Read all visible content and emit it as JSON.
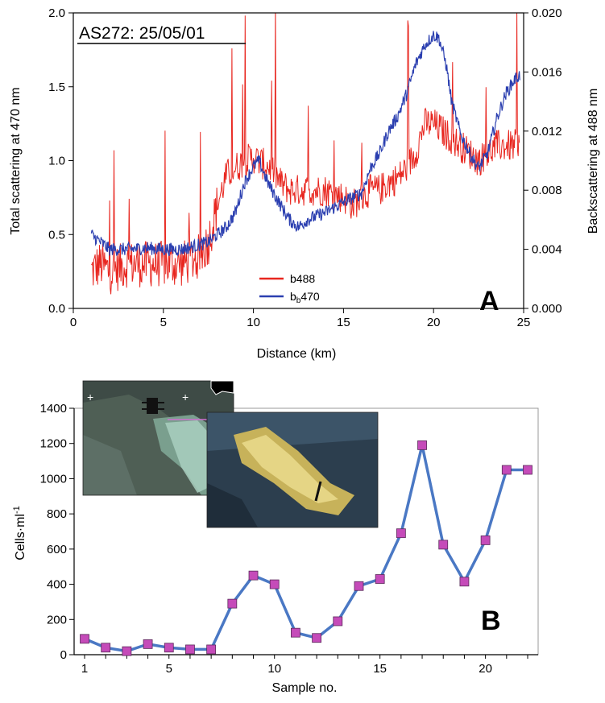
{
  "chart_data": [
    {
      "panel": "A",
      "type": "line",
      "title": "AS272: 25/05/01",
      "panel_label": "A",
      "xlabel": "Distance (km)",
      "ylabel_left": "Total scattering at 470 nm",
      "ylabel_right": "Backscattering at 488 nm",
      "xlim": [
        0,
        25
      ],
      "ylim_left": [
        0.0,
        2.0
      ],
      "ylim_right": [
        0.0,
        0.02
      ],
      "xticks": [
        "0",
        "5",
        "10",
        "15",
        "20",
        "25"
      ],
      "yticks_left": [
        "0.0",
        "0.5",
        "1.0",
        "1.5",
        "2.0"
      ],
      "yticks_right": [
        "0.000",
        "0.004",
        "0.008",
        "0.012",
        "0.016",
        "0.020"
      ],
      "legend": {
        "position": "bottom-center",
        "entries": [
          {
            "label": "b488",
            "color": "#e8261f"
          },
          {
            "label": "bb470",
            "color": "#2b3fb0"
          }
        ]
      },
      "series": [
        {
          "name": "b488",
          "axis": "left",
          "color": "#e8261f",
          "x": [
            1,
            1.5,
            2,
            3,
            4,
            5,
            6,
            7,
            7.5,
            8,
            8.5,
            9,
            9.5,
            10,
            10.5,
            11,
            11.5,
            12,
            13,
            14,
            15,
            15.5,
            16,
            16.5,
            17,
            17.5,
            18,
            18.5,
            19,
            19.5,
            20,
            20.5,
            21,
            21.5,
            22,
            22.5,
            23,
            23.5,
            24,
            24.5,
            24.8
          ],
          "values": [
            0.25,
            0.3,
            0.25,
            0.3,
            0.3,
            0.3,
            0.3,
            0.35,
            0.45,
            0.7,
            0.9,
            0.95,
            1.0,
            1.02,
            0.98,
            0.95,
            0.85,
            0.8,
            0.8,
            0.8,
            0.75,
            0.7,
            0.75,
            0.8,
            0.8,
            0.85,
            0.88,
            0.95,
            1.05,
            1.25,
            1.25,
            1.2,
            1.15,
            1.1,
            1.05,
            1.0,
            1.05,
            1.1,
            1.1,
            1.1,
            1.15
          ]
        },
        {
          "name": "bb470",
          "axis": "right",
          "color": "#2b3fb0",
          "x": [
            1,
            1.5,
            2,
            3,
            4,
            5,
            6,
            7,
            7.5,
            8,
            8.5,
            9,
            9.5,
            10,
            10.3,
            10.8,
            11.5,
            12,
            12.5,
            13,
            14,
            15,
            16,
            16.5,
            17,
            17.5,
            18,
            18.5,
            19,
            19.5,
            20,
            20.3,
            20.7,
            21,
            21.5,
            22,
            22.5,
            23,
            23.5,
            24,
            24.5,
            24.8
          ],
          "values": [
            0.005,
            0.0045,
            0.004,
            0.004,
            0.0041,
            0.004,
            0.004,
            0.0043,
            0.0045,
            0.005,
            0.0055,
            0.0065,
            0.0085,
            0.0096,
            0.01,
            0.0085,
            0.007,
            0.006,
            0.0055,
            0.006,
            0.0065,
            0.0072,
            0.0078,
            0.0095,
            0.0105,
            0.012,
            0.013,
            0.0145,
            0.0165,
            0.0178,
            0.0185,
            0.0183,
            0.0165,
            0.014,
            0.0118,
            0.0105,
            0.0095,
            0.0105,
            0.0128,
            0.0145,
            0.0155,
            0.0158
          ]
        }
      ]
    },
    {
      "panel": "B",
      "type": "line",
      "panel_label": "B",
      "xlabel": "Sample no.",
      "ylabel": "Cells·ml",
      "ylabel_sup": "-1",
      "xlim": [
        1,
        22
      ],
      "ylim": [
        0,
        1400
      ],
      "xticks": [
        "1",
        "5",
        "10",
        "15",
        "20"
      ],
      "yticks": [
        "0",
        "200",
        "400",
        "600",
        "800",
        "1000",
        "1200",
        "1400"
      ],
      "line_color": "#4a78c4",
      "marker_color": "#c54bb9",
      "x": [
        1,
        2,
        3,
        4,
        5,
        6,
        7,
        8,
        9,
        10,
        11,
        12,
        13,
        14,
        15,
        16,
        17,
        18,
        19,
        20,
        21,
        22
      ],
      "values": [
        90,
        40,
        20,
        60,
        40,
        30,
        30,
        290,
        450,
        400,
        125,
        95,
        190,
        390,
        430,
        690,
        1190,
        625,
        415,
        650,
        1050,
        1050
      ]
    }
  ],
  "insets": [
    {
      "kind": "satellite-image"
    },
    {
      "kind": "sea-surface-photo"
    }
  ]
}
